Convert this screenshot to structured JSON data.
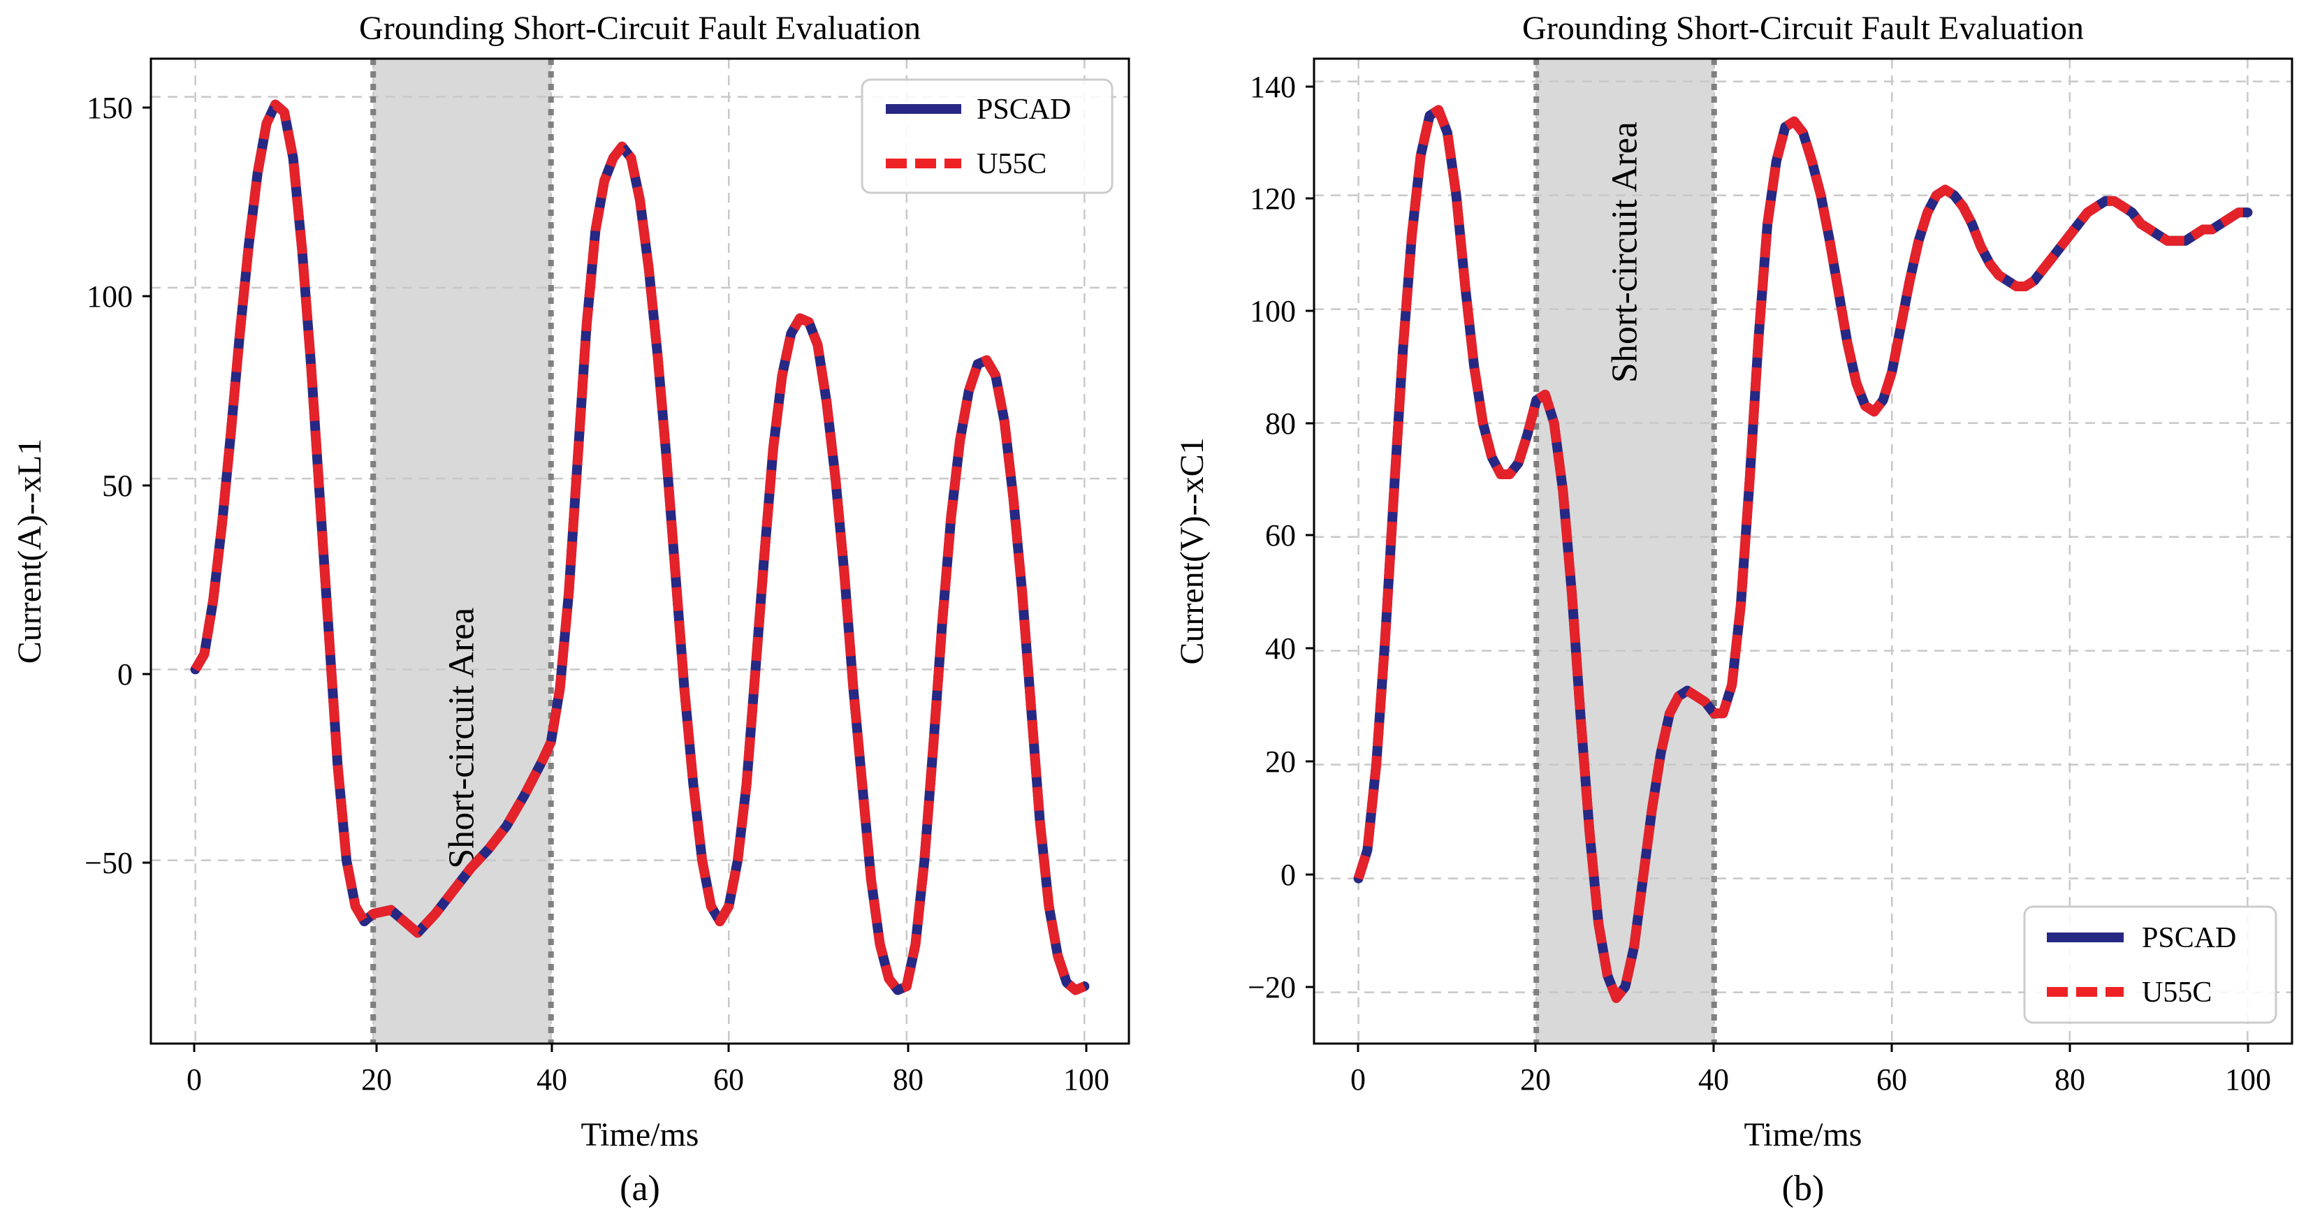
{
  "chart_data": [
    {
      "id": "a",
      "type": "line",
      "title": "Grounding Short-Circuit Fault Evaluation",
      "xlabel": "Time/ms",
      "ylabel": "Current(A)--xL1",
      "caption": "(a)",
      "xlim": [
        -5,
        105
      ],
      "ylim": [
        -98,
        160
      ],
      "xticks": [
        0,
        20,
        40,
        60,
        80,
        100
      ],
      "yticks": [
        -50,
        0,
        50,
        100,
        150
      ],
      "ytick_labels": [
        "−50",
        "0",
        "50",
        "100",
        "150"
      ],
      "grid": true,
      "legend_position": "top-right",
      "shaded_region": {
        "x": [
          20,
          40
        ],
        "label": "Short-circuit Area",
        "label_y": -18
      },
      "series": [
        {
          "name": "PSCAD",
          "style": "solid"
        },
        {
          "name": "U55C",
          "style": "dashed"
        }
      ],
      "x": [
        0,
        1,
        2,
        3,
        4,
        5,
        6,
        7,
        8,
        9,
        10,
        11,
        12,
        13,
        14,
        15,
        16,
        17,
        18,
        19,
        20,
        22,
        24,
        25,
        27,
        29,
        31,
        33,
        35,
        37,
        39,
        40,
        41,
        42,
        43,
        44,
        45,
        46,
        47,
        48,
        49,
        50,
        51,
        52,
        53,
        54,
        55,
        56,
        57,
        58,
        59,
        60,
        61,
        62,
        63,
        64,
        65,
        66,
        67,
        68,
        69,
        70,
        71,
        72,
        73,
        74,
        75,
        76,
        77,
        78,
        79,
        80,
        81,
        82,
        83,
        84,
        85,
        86,
        87,
        88,
        89,
        90,
        91,
        92,
        93,
        94,
        95,
        96,
        97,
        98,
        99,
        100
      ],
      "values": [
        0,
        4,
        18,
        38,
        62,
        88,
        111,
        130,
        143,
        148,
        146,
        134,
        110,
        80,
        45,
        10,
        -25,
        -50,
        -62,
        -66,
        -64,
        -63,
        -67,
        -69,
        -64,
        -58,
        -52,
        -47,
        -41,
        -33,
        -24,
        -19,
        -5,
        20,
        55,
        90,
        115,
        128,
        134,
        137,
        134,
        123,
        105,
        82,
        55,
        25,
        -5,
        -30,
        -50,
        -62,
        -66,
        -62,
        -50,
        -30,
        0,
        30,
        58,
        77,
        88,
        92,
        91,
        85,
        70,
        50,
        25,
        -5,
        -30,
        -55,
        -72,
        -81,
        -84,
        -83,
        -72,
        -50,
        -20,
        12,
        40,
        60,
        73,
        80,
        81,
        77,
        65,
        45,
        20,
        -10,
        -40,
        -62,
        -75,
        -82,
        -84,
        -83
      ]
    },
    {
      "id": "b",
      "type": "line",
      "title": "Grounding Short-Circuit Fault Evaluation",
      "xlabel": "Time/ms",
      "ylabel": "Current(V)--xC1",
      "caption": "(b)",
      "xlim": [
        -5,
        105
      ],
      "ylim": [
        -29,
        144
      ],
      "xticks": [
        0,
        20,
        40,
        60,
        80,
        100
      ],
      "yticks": [
        -20,
        0,
        20,
        40,
        60,
        80,
        100,
        120,
        140
      ],
      "ytick_labels": [
        "−20",
        "0",
        "20",
        "40",
        "60",
        "80",
        "100",
        "120",
        "140"
      ],
      "grid": true,
      "legend_position": "bottom-right",
      "shaded_region": {
        "x": [
          20,
          40
        ],
        "label": "Short-circuit Area",
        "label_y": 110
      },
      "series": [
        {
          "name": "PSCAD",
          "style": "solid"
        },
        {
          "name": "U55C",
          "style": "dashed"
        }
      ],
      "x": [
        0,
        1,
        2,
        3,
        4,
        5,
        6,
        7,
        8,
        9,
        10,
        11,
        12,
        13,
        14,
        15,
        16,
        17,
        18,
        19,
        20,
        21,
        22,
        23,
        24,
        25,
        26,
        27,
        28,
        29,
        30,
        31,
        32,
        33,
        34,
        35,
        36,
        37,
        38,
        39,
        40,
        41,
        42,
        43,
        44,
        45,
        46,
        47,
        48,
        49,
        50,
        51,
        52,
        53,
        54,
        55,
        56,
        57,
        58,
        59,
        60,
        61,
        62,
        63,
        64,
        65,
        66,
        67,
        68,
        69,
        70,
        71,
        72,
        73,
        74,
        75,
        76,
        77,
        78,
        79,
        80,
        81,
        82,
        83,
        84,
        85,
        86,
        87,
        88,
        89,
        90,
        91,
        92,
        93,
        94,
        95,
        96,
        97,
        98,
        99,
        100
      ],
      "values": [
        0,
        5,
        20,
        42,
        68,
        93,
        113,
        127,
        134,
        135,
        131,
        120,
        104,
        90,
        80,
        74,
        71,
        71,
        73,
        78,
        84,
        85,
        80,
        68,
        50,
        28,
        8,
        -8,
        -17,
        -21,
        -19,
        -12,
        0,
        12,
        22,
        29,
        32,
        33,
        32,
        31,
        29,
        29,
        34,
        48,
        70,
        95,
        115,
        126,
        132,
        133,
        131,
        126,
        120,
        112,
        103,
        94,
        87,
        83,
        82,
        84,
        89,
        97,
        105,
        112,
        117,
        120,
        121,
        120,
        118,
        115,
        111,
        108,
        106,
        105,
        104,
        104,
        105,
        107,
        109,
        111,
        113,
        115,
        117,
        118,
        119,
        119,
        118,
        117,
        115,
        114,
        113,
        112,
        112,
        112,
        113,
        114,
        114,
        115,
        116,
        117,
        117
      ]
    }
  ]
}
